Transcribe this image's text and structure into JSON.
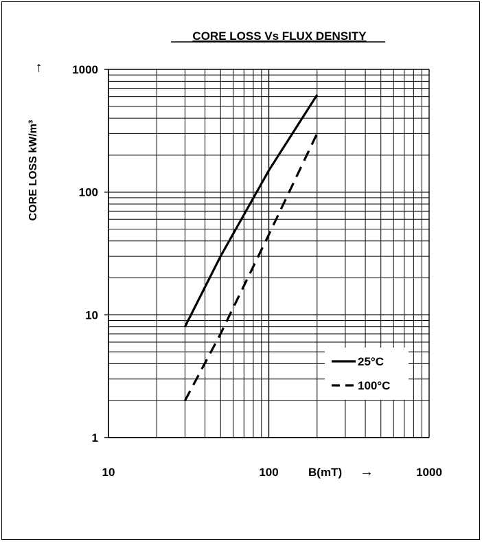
{
  "chart_data": {
    "type": "line",
    "title": "CORE LOSS Vs FLUX DENSITY",
    "ylabel": "CORE LOSS kW/m³",
    "y_arrow": "→",
    "xlabel": "B(mT)",
    "x_arrow": "→",
    "x_scale": "log",
    "y_scale": "log",
    "xlim": [
      10,
      1000
    ],
    "ylim": [
      1,
      1000
    ],
    "x_ticks": [
      10,
      100,
      1000
    ],
    "x_tick_labels": [
      "10",
      "100",
      "1000"
    ],
    "y_ticks": [
      1,
      10,
      100,
      1000
    ],
    "y_tick_labels": [
      "1",
      "10",
      "100",
      "1000"
    ],
    "grid": true,
    "legend_position": "bottom-right",
    "series": [
      {
        "name": "25°C",
        "style": "solid",
        "color": "#000000",
        "x": [
          30,
          50,
          100,
          200
        ],
        "y": [
          8,
          30,
          150,
          620
        ]
      },
      {
        "name": "100°C",
        "style": "dashed",
        "color": "#000000",
        "x": [
          30,
          50,
          100,
          200
        ],
        "y": [
          2,
          7,
          45,
          300
        ]
      }
    ]
  }
}
